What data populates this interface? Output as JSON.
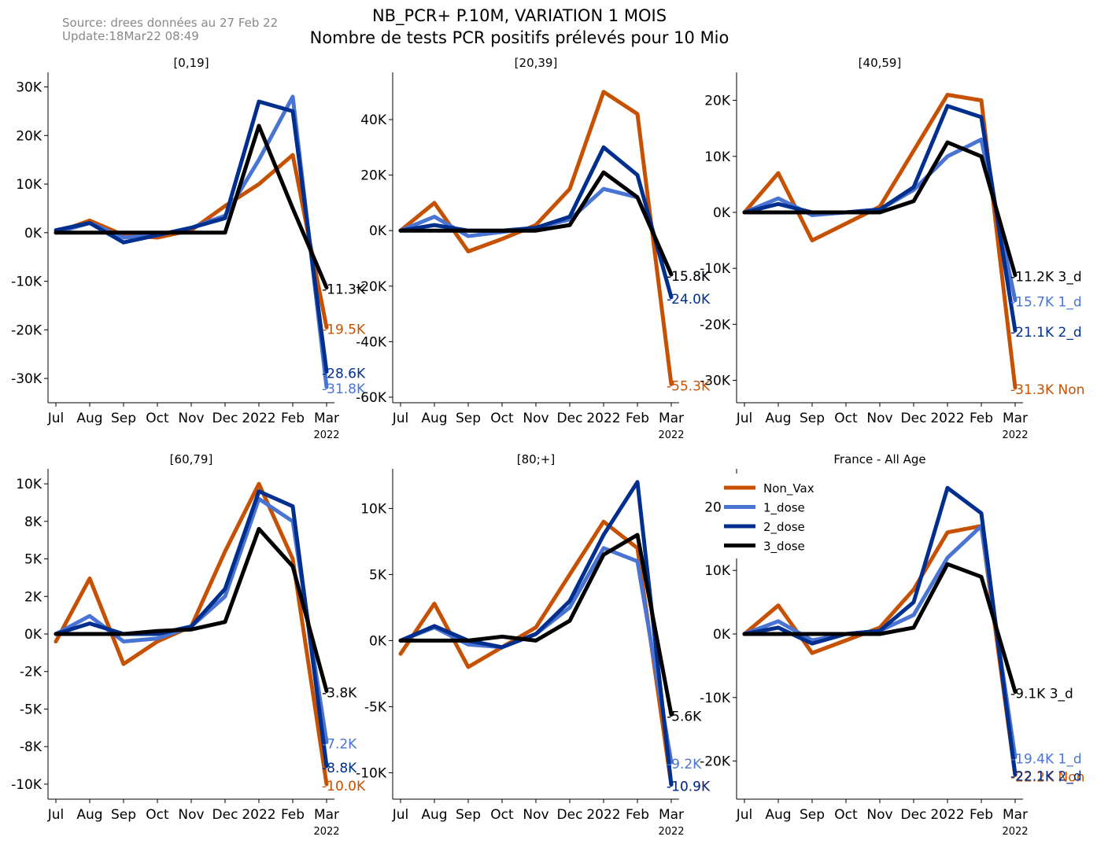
{
  "header": {
    "source": "Source: drees données au 27 Feb 22",
    "update": "Update:18Mar22 08:49",
    "title": "NB_PCR+ P.10M, VARIATION 1 MOIS",
    "subtitle": "Nombre de tests PCR positifs prélevés pour 10 Mio"
  },
  "colors": {
    "Non_Vax": "#C65102",
    "1_dose": "#4A74D4",
    "2_dose": "#002F8E",
    "3_dose": "#000000"
  },
  "x_axis": {
    "month_ticks": [
      "Jul",
      "Aug",
      "Sep",
      "Oct",
      "Nov",
      "Dec",
      "2022",
      "Feb",
      "Mar"
    ],
    "year_label": "2022"
  },
  "legend": {
    "placement": "top-left of panel 6",
    "entries": [
      "Non_Vax",
      "1_dose",
      "2_dose",
      "3_dose"
    ]
  },
  "chart_data": [
    {
      "type": "line",
      "title": "[0,19]",
      "ylim": [
        -35000,
        33000
      ],
      "yticks": [
        -30000,
        -20000,
        -10000,
        0,
        10000,
        20000,
        30000
      ],
      "ytick_labels": [
        "-30K",
        "-20K",
        "-10K",
        "0K",
        "10K",
        "20K",
        "30K"
      ],
      "x": [
        "Jul",
        "Aug",
        "Sep",
        "Oct",
        "Nov",
        "Dec",
        "Jan",
        "Feb",
        "Mar"
      ],
      "series": [
        {
          "name": "Non_Vax",
          "values": [
            0,
            2500,
            -500,
            -1000,
            500,
            5500,
            10000,
            16000,
            -19500
          ],
          "end_label": "-19.5K"
        },
        {
          "name": "1_dose",
          "values": [
            0,
            2000,
            -1000,
            -500,
            1000,
            3500,
            15000,
            28000,
            -31800
          ],
          "end_label": "-31.8K"
        },
        {
          "name": "2_dose",
          "values": [
            500,
            2000,
            -2000,
            -500,
            1000,
            3000,
            27000,
            25000,
            -28600
          ],
          "end_label": "-28.6K"
        },
        {
          "name": "3_dose",
          "values": [
            0,
            0,
            0,
            0,
            0,
            0,
            22000,
            5000,
            -11300
          ],
          "end_label": "-11.3K"
        }
      ]
    },
    {
      "type": "line",
      "title": "[20,39]",
      "ylim": [
        -62000,
        57000
      ],
      "yticks": [
        -60000,
        -40000,
        -20000,
        0,
        20000,
        40000
      ],
      "ytick_labels": [
        "-60K",
        "-40K",
        "-20K",
        "0K",
        "20K",
        "40K"
      ],
      "x": [
        "Jul",
        "Aug",
        "Sep",
        "Oct",
        "Nov",
        "Dec",
        "Jan",
        "Feb",
        "Mar"
      ],
      "series": [
        {
          "name": "Non_Vax",
          "values": [
            0,
            10000,
            -7500,
            -3000,
            2000,
            15000,
            50000,
            42000,
            -55300
          ],
          "end_label": "-55.3K"
        },
        {
          "name": "1_dose",
          "values": [
            0,
            5000,
            -2000,
            -500,
            1000,
            4000,
            15000,
            12000,
            -15800
          ],
          "end_label": "-15.8K"
        },
        {
          "name": "2_dose",
          "values": [
            0,
            2000,
            0,
            0,
            1000,
            5000,
            30000,
            20000,
            -24000
          ],
          "end_label": "-24.0K"
        },
        {
          "name": "3_dose",
          "values": [
            0,
            0,
            0,
            0,
            0,
            2000,
            21000,
            12000,
            -15800
          ],
          "end_label": "-15.8K"
        }
      ]
    },
    {
      "type": "line",
      "title": "[40,59]",
      "ylim": [
        -34000,
        25000
      ],
      "yticks": [
        -30000,
        -20000,
        -10000,
        0,
        10000,
        20000
      ],
      "ytick_labels": [
        "-30K",
        "-20K",
        "-10K",
        "0K",
        "10K",
        "20K"
      ],
      "x": [
        "Jul",
        "Aug",
        "Sep",
        "Oct",
        "Nov",
        "Dec",
        "Jan",
        "Feb",
        "Mar"
      ],
      "series": [
        {
          "name": "Non_Vax",
          "values": [
            0,
            7000,
            -5000,
            -2000,
            1000,
            11000,
            21000,
            20000,
            -31300
          ],
          "end_label": "-31.3K Non"
        },
        {
          "name": "1_dose",
          "values": [
            0,
            2500,
            -500,
            0,
            500,
            4000,
            10000,
            13000,
            -15700
          ],
          "end_label": "-15.7K 1_d"
        },
        {
          "name": "2_dose",
          "values": [
            0,
            1500,
            0,
            0,
            500,
            4500,
            19000,
            17000,
            -21100
          ],
          "end_label": "-21.1K 2_d"
        },
        {
          "name": "3_dose",
          "values": [
            0,
            0,
            0,
            0,
            0,
            2000,
            12500,
            10000,
            -11200
          ],
          "end_label": "-11.2K 3_d"
        }
      ]
    },
    {
      "type": "line",
      "title": "[60,79]",
      "ylim": [
        -11000,
        11000
      ],
      "yticks": [
        -10000,
        -7500,
        -5000,
        -2500,
        0,
        2500,
        5000,
        7500,
        10000
      ],
      "ytick_labels": [
        "-10K",
        "-8K",
        "-5K",
        "-2K",
        "0K",
        "2K",
        "5K",
        "8K",
        "10K"
      ],
      "x": [
        "Jul",
        "Aug",
        "Sep",
        "Oct",
        "Nov",
        "Dec",
        "Jan",
        "Feb",
        "Mar"
      ],
      "series": [
        {
          "name": "Non_Vax",
          "values": [
            -500,
            3700,
            -2000,
            -500,
            500,
            5500,
            10000,
            5000,
            -10000
          ],
          "end_label": "-10.0K"
        },
        {
          "name": "1_dose",
          "values": [
            0,
            1200,
            -500,
            -300,
            500,
            2500,
            9000,
            7500,
            -7200
          ],
          "end_label": "-7.2K"
        },
        {
          "name": "2_dose",
          "values": [
            0,
            700,
            0,
            0,
            500,
            3000,
            9500,
            8500,
            -8800
          ],
          "end_label": "-8.8K"
        },
        {
          "name": "3_dose",
          "values": [
            0,
            0,
            0,
            200,
            300,
            800,
            7000,
            4500,
            -3800
          ],
          "end_label": "-3.8K"
        }
      ]
    },
    {
      "type": "line",
      "title": "[80;+]",
      "ylim": [
        -12000,
        13000
      ],
      "yticks": [
        -10000,
        -5000,
        0,
        5000,
        10000
      ],
      "ytick_labels": [
        "-10K",
        "-5K",
        "0K",
        "5K",
        "10K"
      ],
      "x": [
        "Jul",
        "Aug",
        "Sep",
        "Oct",
        "Nov",
        "Dec",
        "Jan",
        "Feb",
        "Mar"
      ],
      "series": [
        {
          "name": "Non_Vax",
          "values": [
            -1000,
            2800,
            -2000,
            -500,
            1000,
            5000,
            9000,
            7000,
            -10900
          ],
          "end_label": "-10.9K"
        },
        {
          "name": "1_dose",
          "values": [
            0,
            1000,
            -300,
            -500,
            500,
            2500,
            7000,
            6000,
            -9200
          ],
          "end_label": "-9.2K"
        },
        {
          "name": "2_dose",
          "values": [
            0,
            1100,
            0,
            -500,
            500,
            3000,
            8000,
            12000,
            -10900
          ],
          "end_label": "-10.9K"
        },
        {
          "name": "3_dose",
          "values": [
            0,
            0,
            0,
            300,
            0,
            1500,
            6500,
            8000,
            -5600
          ],
          "end_label": "-5.6K"
        }
      ]
    },
    {
      "type": "line",
      "title": "France - All Age",
      "ylim": [
        -26000,
        26000
      ],
      "yticks": [
        -20000,
        -10000,
        0,
        10000,
        20000
      ],
      "ytick_labels": [
        "-20K",
        "-10K",
        "0K",
        "10K",
        "20K"
      ],
      "x": [
        "Jul",
        "Aug",
        "Sep",
        "Oct",
        "Nov",
        "Dec",
        "Jan",
        "Feb",
        "Mar"
      ],
      "series": [
        {
          "name": "Non_Vax",
          "values": [
            0,
            4500,
            -3000,
            -1000,
            1000,
            7000,
            16000,
            17000,
            -22200
          ],
          "end_label": "-22.2K Non"
        },
        {
          "name": "1_dose",
          "values": [
            0,
            2000,
            -1000,
            0,
            500,
            3000,
            12000,
            17000,
            -19400
          ],
          "end_label": "-19.4K 1_d"
        },
        {
          "name": "2_dose",
          "values": [
            0,
            1000,
            -1500,
            0,
            500,
            5000,
            23000,
            19000,
            -22100
          ],
          "end_label": "-22.1K 2_d"
        },
        {
          "name": "3_dose",
          "values": [
            0,
            0,
            0,
            0,
            0,
            1000,
            11000,
            9000,
            -9100
          ],
          "end_label": "-9.1K 3_d"
        }
      ]
    }
  ]
}
